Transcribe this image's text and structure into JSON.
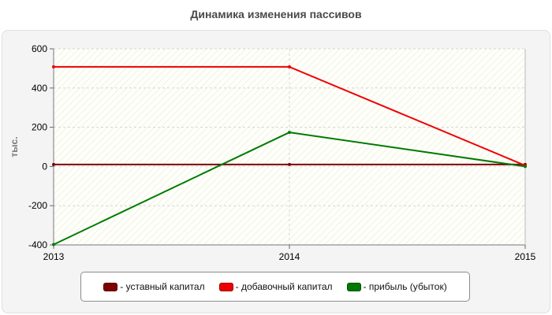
{
  "chart_data": {
    "type": "line",
    "title": "Динамика изменения пассивов",
    "ylabel": "тыс.",
    "xlabel": "",
    "categories": [
      "2013",
      "2014",
      "2015"
    ],
    "ylim": [
      -400,
      600
    ],
    "yticks": [
      600,
      400,
      200,
      0,
      -200,
      -400
    ],
    "yticks_labels": [
      "600",
      "400",
      "200",
      "0",
      "-200",
      "-400"
    ],
    "grid": true,
    "legend_position": "bottom",
    "series": [
      {
        "name": "- уставный капитал",
        "color": "#800000",
        "values": [
          10,
          10,
          10
        ]
      },
      {
        "name": "- добавочный капитал",
        "color": "#ee0000",
        "values": [
          508,
          508,
          5
        ]
      },
      {
        "name": "- прибыль (убыток)",
        "color": "#007a00",
        "values": [
          -398,
          174,
          0
        ]
      }
    ]
  }
}
